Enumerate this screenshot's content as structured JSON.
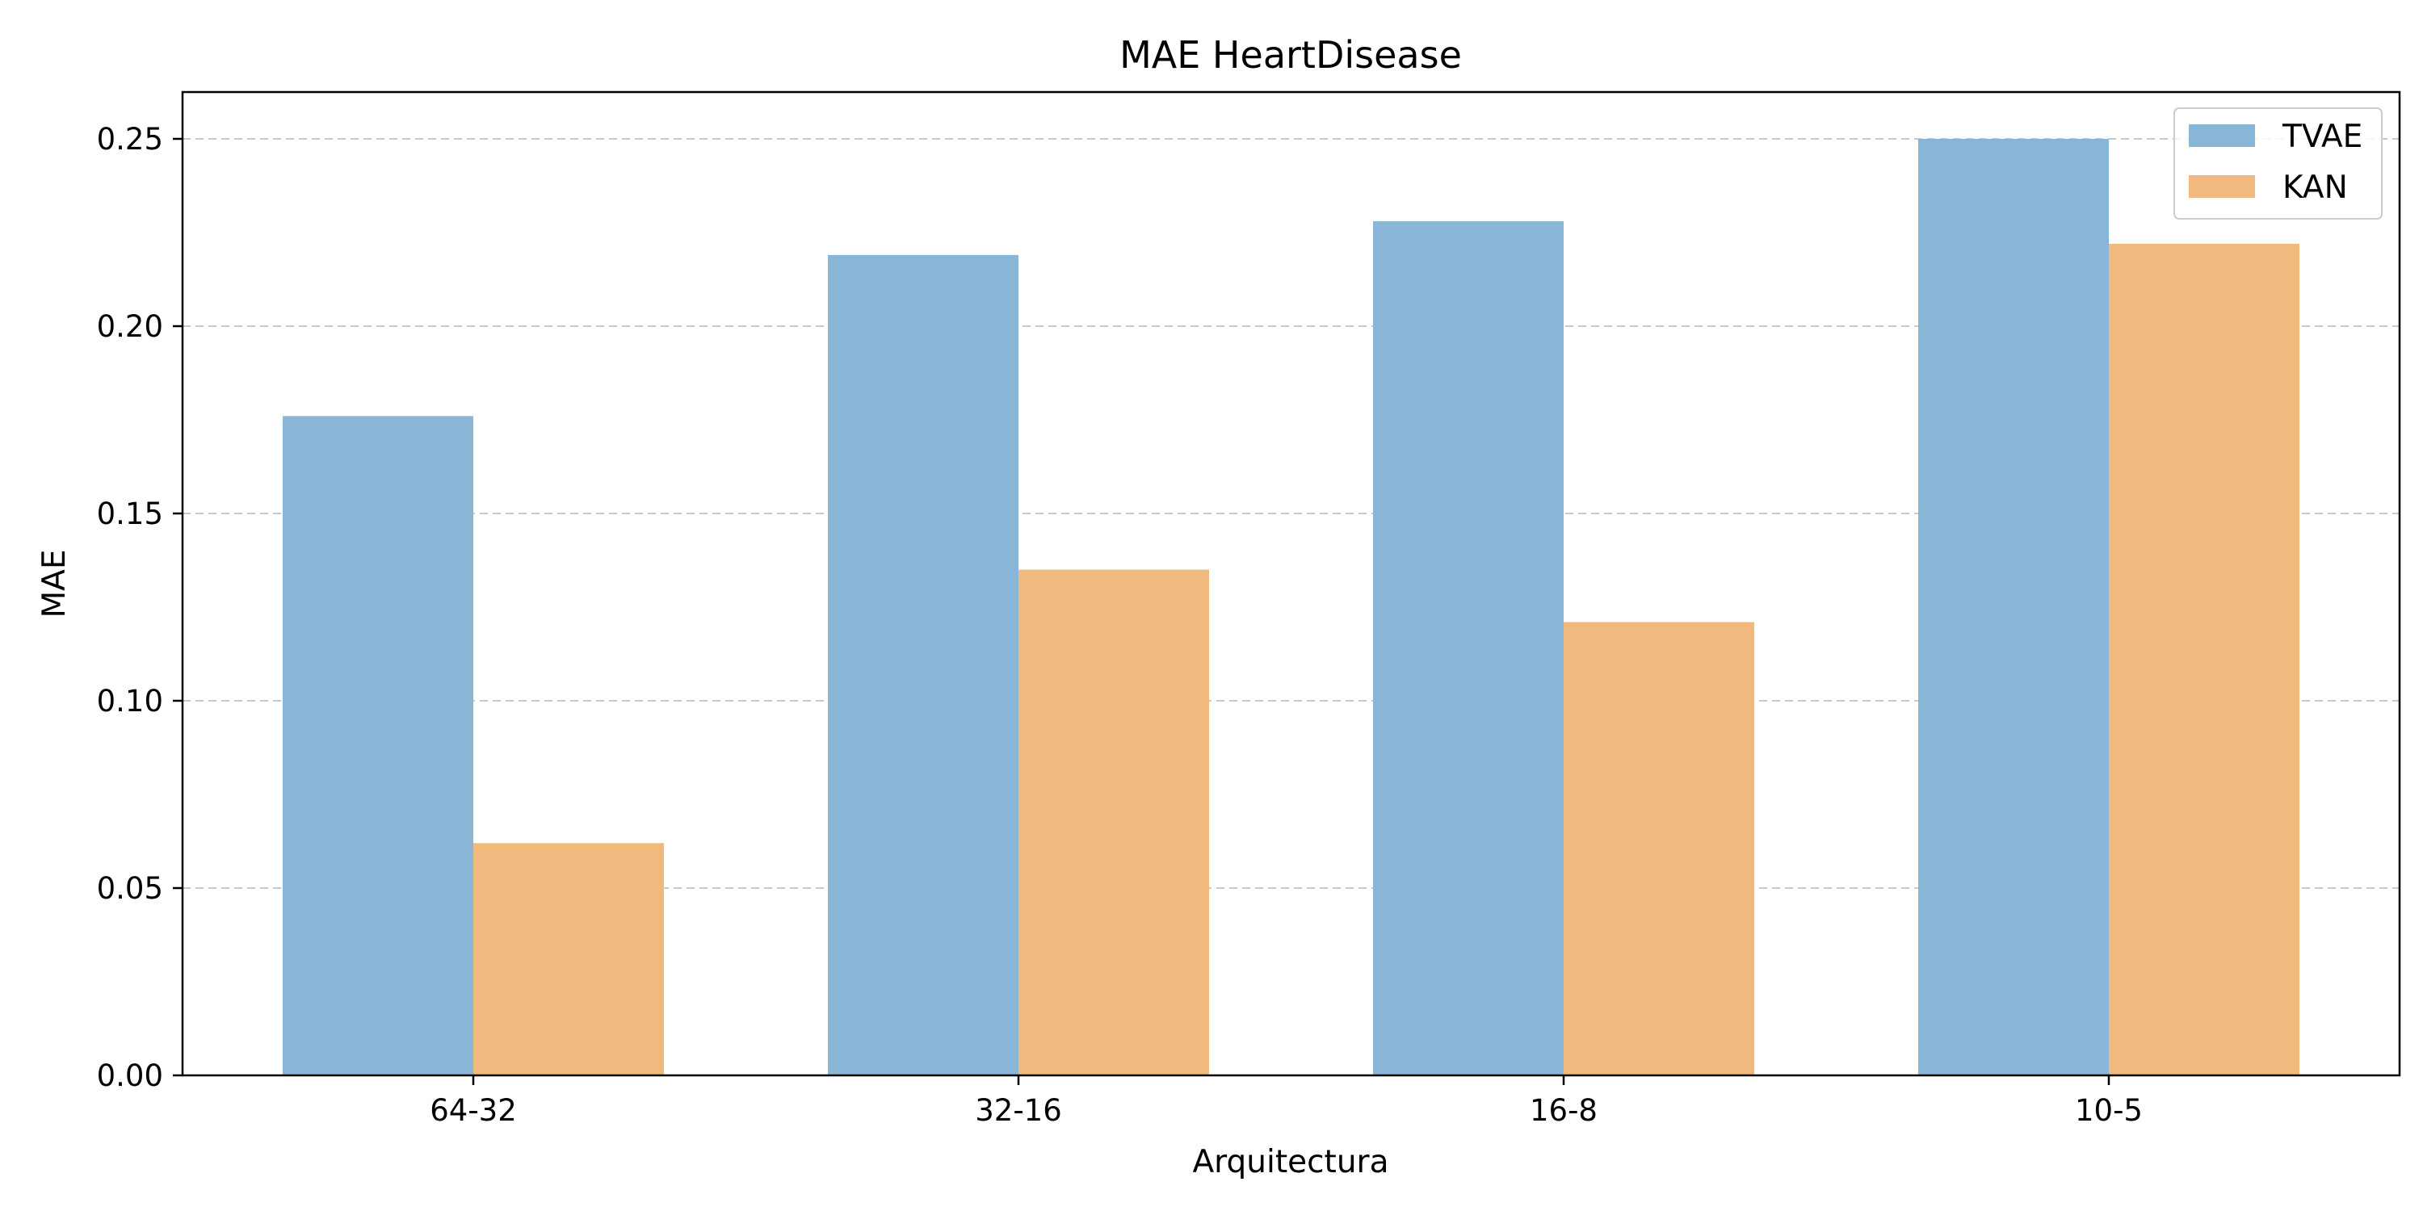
{
  "chart_data": {
    "type": "bar",
    "title": "MAE HeartDisease",
    "xlabel": "Arquitectura",
    "ylabel": "MAE",
    "categories": [
      "64-32",
      "32-16",
      "16-8",
      "10-5"
    ],
    "series": [
      {
        "name": "TVAE",
        "values": [
          0.176,
          0.219,
          0.228,
          0.25
        ],
        "color": "#89b5d6"
      },
      {
        "name": "KAN",
        "values": [
          0.062,
          0.135,
          0.121,
          0.222
        ],
        "color": "#f0b97d"
      }
    ],
    "ylim": [
      0,
      0.2625
    ],
    "yticks": [
      "0.00",
      "0.05",
      "0.10",
      "0.15",
      "0.20",
      "0.25"
    ],
    "grid": "y dashed",
    "legend_position": "top-right"
  }
}
